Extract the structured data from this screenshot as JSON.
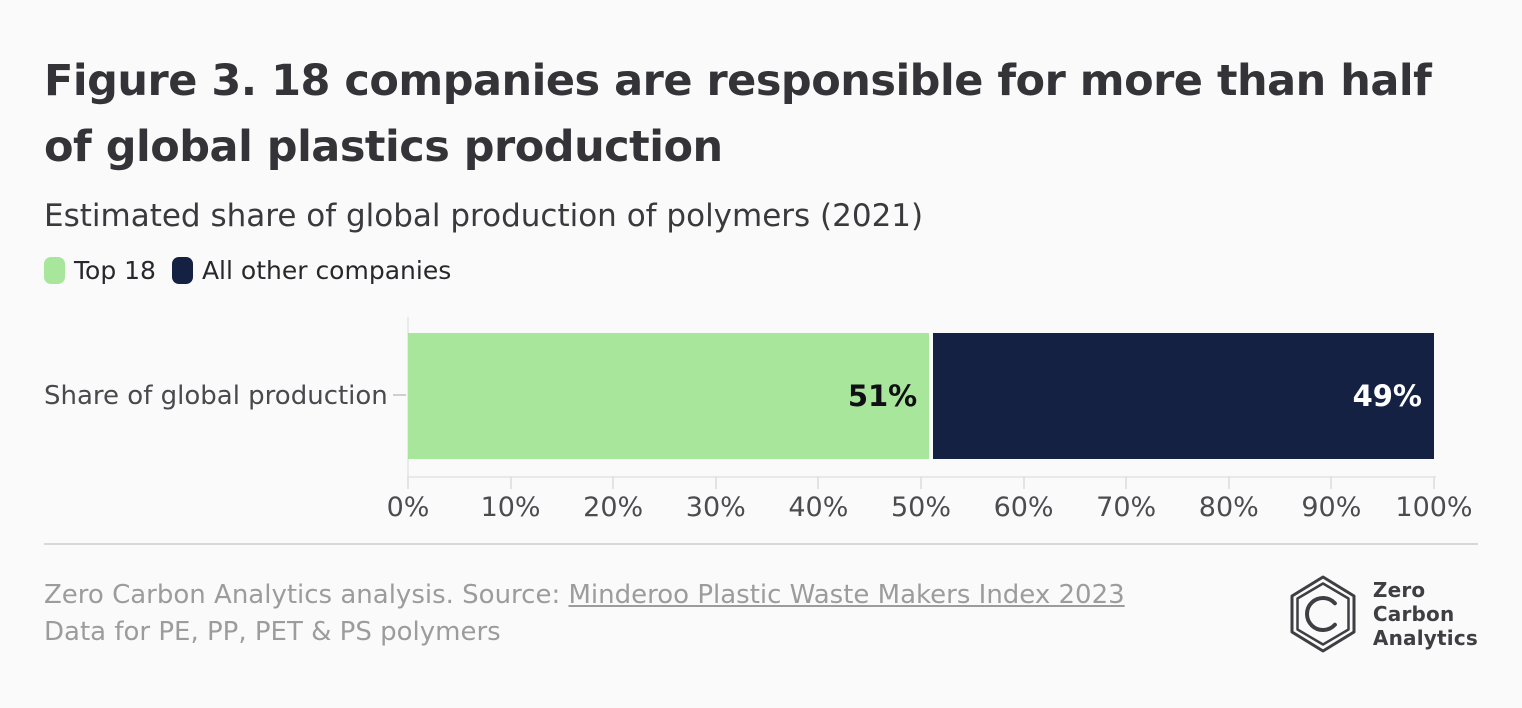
{
  "header": {
    "title": "Figure 3. 18 companies are responsible for more than half of global plastics production",
    "subtitle": "Estimated share of global production of polymers (2021)"
  },
  "legend": {
    "items": [
      {
        "label": "Top 18",
        "color": "#a8e69c"
      },
      {
        "label": "All other companies",
        "color": "#152143"
      }
    ]
  },
  "chart_data": {
    "type": "bar",
    "orientation": "horizontal",
    "stacked": true,
    "title": "Figure 3. 18 companies are responsible for more than half of global plastics production",
    "subtitle": "Estimated share of global production of polymers (2021)",
    "categories": [
      "Share of global production"
    ],
    "series": [
      {
        "name": "Top 18",
        "values": [
          51
        ],
        "color": "#a8e69c",
        "data_label": "51%",
        "data_label_color": "#101014"
      },
      {
        "name": "All other companies",
        "values": [
          49
        ],
        "color": "#152143",
        "data_label": "49%",
        "data_label_color": "#ffffff"
      }
    ],
    "xlim": [
      0,
      100
    ],
    "x_tick_labels": [
      "0%",
      "10%",
      "20%",
      "30%",
      "40%",
      "50%",
      "60%",
      "70%",
      "80%",
      "90%",
      "100%"
    ],
    "grid": false,
    "legend_position": "top-left"
  },
  "footer": {
    "line1_prefix": "Zero Carbon Analytics analysis. Source: ",
    "link_text": "Minderoo Plastic Waste Makers Index 2023",
    "line2": "Data for PE, PP, PET & PS polymers",
    "logo_text_lines": [
      "Zero",
      "Carbon",
      "Analytics"
    ]
  },
  "colors": {
    "background": "#fafafa",
    "top18_green": "#a8e69c",
    "other_navy": "#152143",
    "muted_text": "#9c9c9c"
  }
}
